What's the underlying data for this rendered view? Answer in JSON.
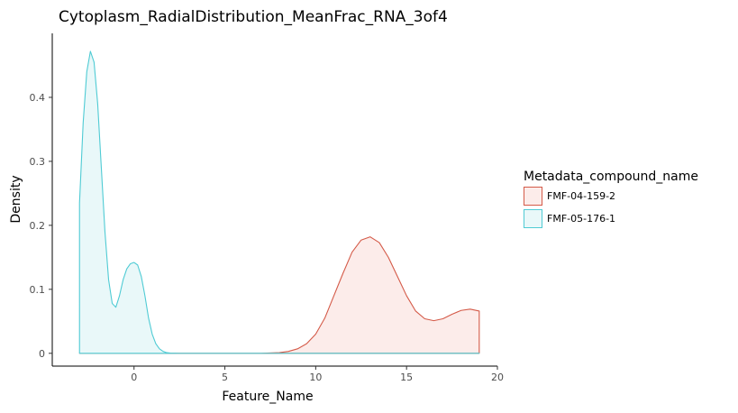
{
  "chart_data": {
    "type": "area",
    "title": "Cytoplasm_RadialDistribution_MeanFrac_RNA_3of4",
    "xlabel": "Feature_Name",
    "ylabel": "Density",
    "xlim": [
      -4.5,
      20
    ],
    "ylim": [
      -0.02,
      0.5
    ],
    "x_ticks": [
      0,
      5,
      10,
      15,
      20
    ],
    "x_tick_labels": [
      "0",
      "5",
      "10",
      "15",
      "20"
    ],
    "y_ticks": [
      0,
      0.1,
      0.2,
      0.3,
      0.4
    ],
    "y_tick_labels": [
      "0",
      "0.1",
      "0.2",
      "0.3",
      "0.4"
    ],
    "grid": false,
    "legend": {
      "title": "Metadata_compound_name",
      "position": "right"
    },
    "series": [
      {
        "name": "FMF-04-159-2",
        "line_color": "#d45a48",
        "fill_color": "#fcecea",
        "x": [
          -3,
          7,
          8,
          8.5,
          9,
          9.5,
          10,
          10.5,
          11,
          11.5,
          12,
          12.5,
          13,
          13.5,
          14,
          14.5,
          15,
          15.5,
          16,
          16.5,
          17,
          17.5,
          18,
          18.5,
          19
        ],
        "y": [
          0,
          0,
          0.001,
          0.003,
          0.007,
          0.015,
          0.03,
          0.055,
          0.09,
          0.125,
          0.158,
          0.177,
          0.182,
          0.173,
          0.15,
          0.12,
          0.09,
          0.066,
          0.054,
          0.051,
          0.054,
          0.061,
          0.067,
          0.069,
          0.066
        ]
      },
      {
        "name": "FMF-05-176-1",
        "line_color": "#4fcbd4",
        "fill_color": "#e9f8f9",
        "x": [
          -3,
          -2.8,
          -2.6,
          -2.4,
          -2.2,
          -2,
          -1.8,
          -1.6,
          -1.4,
          -1.2,
          -1,
          -0.8,
          -0.6,
          -0.4,
          -0.2,
          0,
          0.2,
          0.4,
          0.6,
          0.8,
          1,
          1.2,
          1.4,
          1.6,
          1.8,
          2,
          2.5,
          19
        ],
        "y": [
          0.235,
          0.36,
          0.44,
          0.472,
          0.455,
          0.39,
          0.29,
          0.19,
          0.115,
          0.078,
          0.072,
          0.09,
          0.115,
          0.132,
          0.14,
          0.142,
          0.138,
          0.12,
          0.09,
          0.055,
          0.03,
          0.015,
          0.007,
          0.003,
          0.001,
          0.0003,
          0,
          0
        ]
      }
    ]
  }
}
